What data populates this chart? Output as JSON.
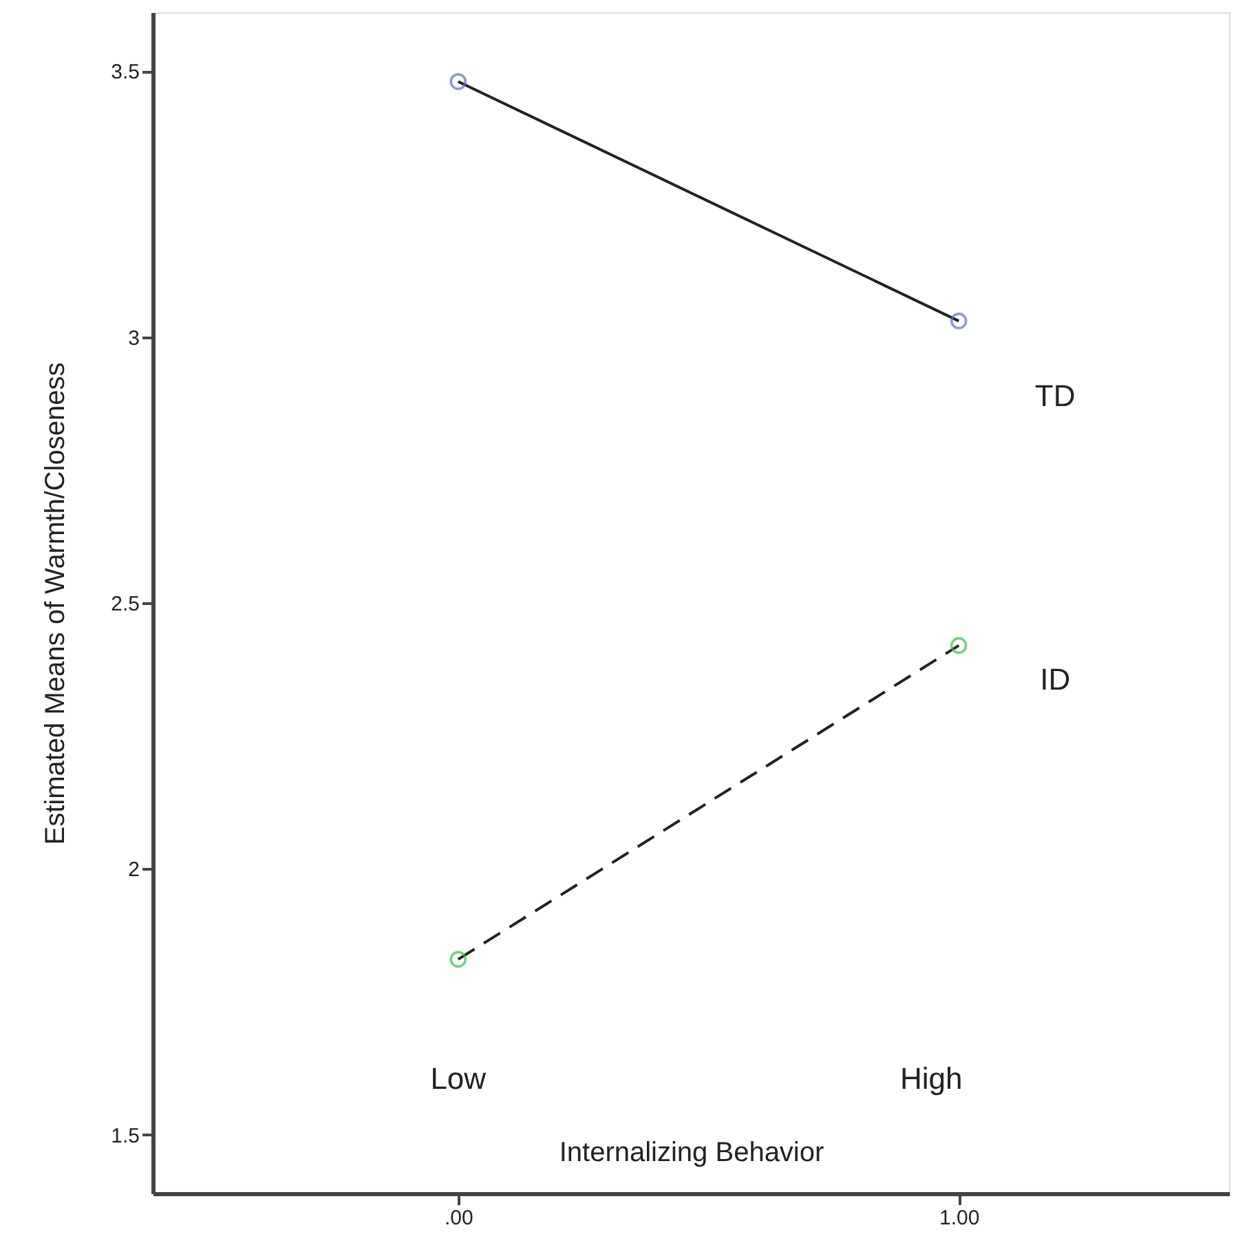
{
  "chart_data": {
    "type": "line",
    "xlabel": "Internalizing Behavior",
    "ylabel": "Estimated Means of Warmth/Closeness",
    "x": [
      0,
      1
    ],
    "xlim": [
      -0.61,
      1.54
    ],
    "xticks": [
      {
        "value": 0,
        "label": ".00"
      },
      {
        "value": 1,
        "label": "1.00"
      }
    ],
    "ylim": [
      1.39,
      3.61
    ],
    "yticks": [
      1.5,
      2,
      2.5,
      3,
      3.5
    ],
    "grid": false,
    "marker": "circle",
    "series": [
      {
        "name": "TD",
        "color": "#5a6fc6",
        "values": [
          3.48,
          3.03
        ],
        "line_style": "solid"
      },
      {
        "name": "ID",
        "color": "#3cbf4a",
        "values": [
          1.83,
          2.42
        ],
        "line_style": "dashed"
      }
    ],
    "annotations": [
      "Low",
      "High"
    ]
  }
}
